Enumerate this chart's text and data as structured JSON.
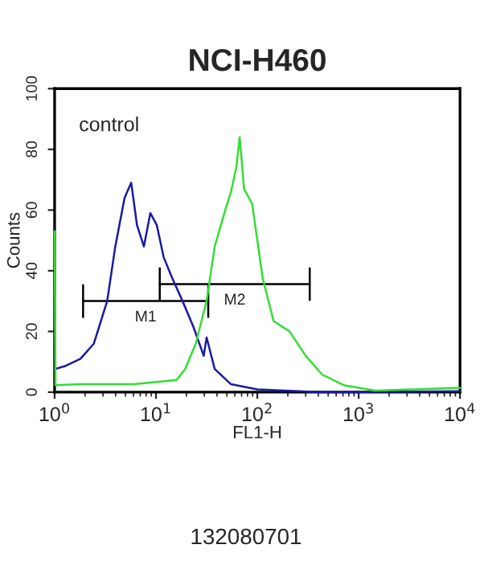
{
  "chart_data": {
    "type": "line",
    "title": "NCI-H460",
    "xlabel": "FL1-H",
    "ylabel": "Counts",
    "log": "x",
    "xlim": [
      1,
      10000
    ],
    "xticks": [
      {
        "value": 1,
        "label": "10$^{0}$"
      },
      {
        "value": 10,
        "label": "10$^{1}$"
      },
      {
        "value": 100,
        "label": "10$^{2}$"
      },
      {
        "value": 1000,
        "label": "10$^{3}$"
      },
      {
        "value": 10000,
        "label": "10$^{4}$"
      }
    ],
    "ylim": [
      0,
      100
    ],
    "yticks": [
      0,
      20,
      40,
      60,
      80,
      100
    ],
    "annotations": [
      "control",
      "132080701"
    ],
    "series": [
      {
        "color": "#1a1aa0",
        "x": [
          1.0,
          1.25,
          1.8,
          2.44,
          3.3,
          3.97,
          4.9,
          5.7,
          6.5,
          7.6,
          8.8,
          10.2,
          11.9,
          14.3,
          18.3,
          23.3,
          29.6,
          31.6,
          38,
          55,
          100,
          436,
          10000
        ],
        "values": [
          7.6,
          8.5,
          11,
          16,
          30,
          48,
          64,
          69,
          55,
          48,
          59,
          55,
          44.5,
          38,
          30,
          21.7,
          12,
          18,
          7.6,
          2.6,
          0.9,
          0,
          0.3
        ]
      },
      {
        "color": "#33dd33",
        "x": [
          1.0,
          1.02,
          1.8,
          6.1,
          16,
          19.4,
          24.7,
          31.6,
          38,
          48.3,
          55,
          62,
          67,
          74,
          89,
          113,
          145,
          208,
          300,
          436,
          710,
          1460,
          10000
        ],
        "values": [
          53,
          2.3,
          2.6,
          2.6,
          4,
          7.6,
          16,
          30,
          48,
          60,
          66,
          74,
          84,
          67,
          62,
          37.5,
          23.4,
          20,
          12,
          5.8,
          2.3,
          0.5,
          1.4
        ]
      },
      {
        "name": "M1",
        "type": "line",
        "color": "#000000",
        "x": [
          1.91,
          32.8
        ],
        "values": [
          30,
          30
        ],
        "errors": [
          5.5,
          5.5
        ]
      },
      {
        "name": "M2",
        "type": "line",
        "color": "#000000",
        "x": [
          10.9,
          329
        ],
        "values": [
          35.6,
          35.6
        ],
        "errors": [
          5.5,
          5.5
        ]
      }
    ]
  }
}
